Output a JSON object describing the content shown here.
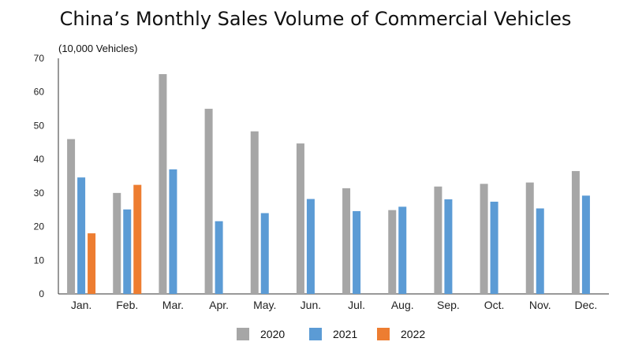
{
  "chart_data": {
    "type": "bar",
    "title": "China’s Monthly Sales Volume of Commercial Vehicles",
    "unit_label": "(10,000 Vehicles)",
    "categories": [
      "Jan.",
      "Feb.",
      "Mar.",
      "Apr.",
      "May.",
      "Jun.",
      "Jul.",
      "Aug.",
      "Sep.",
      "Oct.",
      "Nov.",
      "Dec."
    ],
    "ylim": [
      0,
      70
    ],
    "yticks": [
      0,
      10,
      20,
      30,
      40,
      50,
      60,
      70
    ],
    "grid": false,
    "legend_position": "bottom",
    "series": [
      {
        "name": "2020",
        "color": "#a6a6a6",
        "values": [
          46,
          30,
          65.3,
          55,
          48.3,
          44.7,
          31.4,
          24.9,
          31.9,
          32.7,
          33.1,
          36.5
        ]
      },
      {
        "name": "2021",
        "color": "#5b9bd5",
        "values": [
          34.6,
          25.1,
          37,
          21.6,
          24,
          28.2,
          24.6,
          25.9,
          28.1,
          27.4,
          25.4,
          29.2
        ]
      },
      {
        "name": "2022",
        "color": "#ed7d31",
        "values": [
          18,
          32.4,
          null,
          null,
          null,
          null,
          null,
          null,
          null,
          null,
          null,
          null
        ]
      }
    ]
  }
}
